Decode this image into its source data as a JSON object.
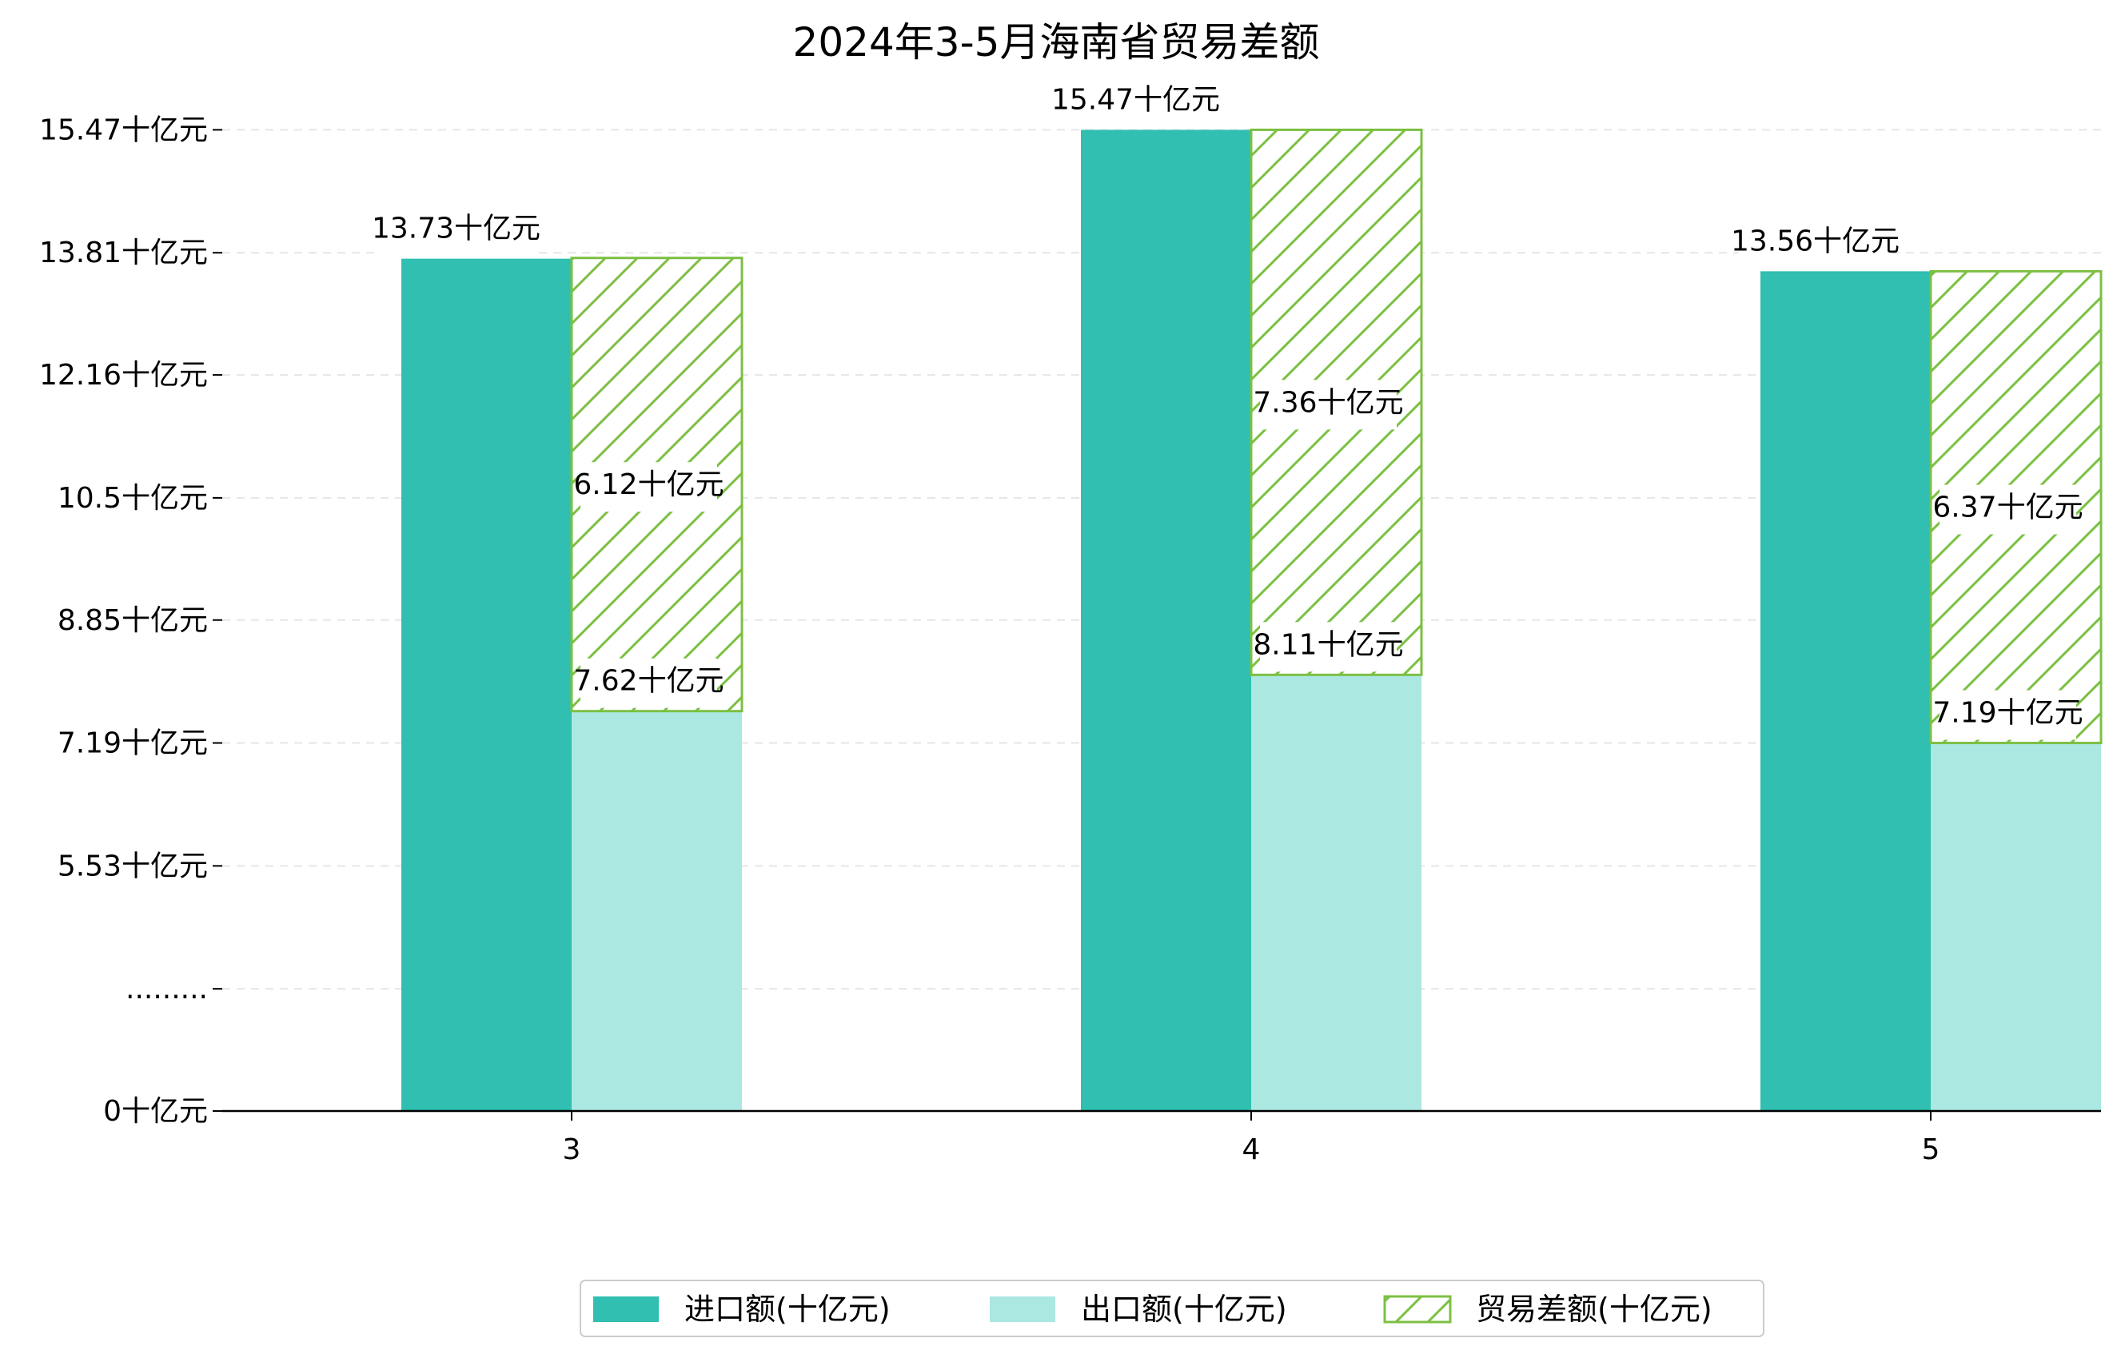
{
  "chart_data": {
    "type": "bar",
    "title": "2024年3-5月海南省贸易差额",
    "categories": [
      "3",
      "4",
      "5"
    ],
    "series": [
      {
        "name": "进口额(十亿元)",
        "values": [
          13.73,
          15.47,
          13.56
        ],
        "labels": [
          "13.73十亿元",
          "15.47十亿元",
          "13.56十亿元"
        ],
        "color": "#30bfb0"
      },
      {
        "name": "出口额(十亿元)",
        "values": [
          7.62,
          8.11,
          7.19
        ],
        "labels": [
          "7.62十亿元",
          "8.11十亿元",
          "7.19十亿元"
        ],
        "color": "#aae8e1"
      },
      {
        "name": "贸易差额(十亿元)",
        "values": [
          6.12,
          7.36,
          6.37
        ],
        "labels": [
          "6.12十亿元",
          "7.36十亿元",
          "6.37十亿元"
        ],
        "color": "#7cc043",
        "pattern": "hatch"
      }
    ],
    "y_ticks": [
      {
        "value": 0,
        "label": "0十亿元"
      },
      {
        "value": 1.65,
        "label": "........."
      },
      {
        "value": 3.31,
        "label": "5.53十亿元"
      },
      {
        "value": 4.97,
        "label": "7.19十亿元"
      },
      {
        "value": 6.63,
        "label": "8.85十亿元"
      },
      {
        "value": 8.28,
        "label": "10.5十亿元"
      },
      {
        "value": 9.94,
        "label": "12.16十亿元"
      },
      {
        "value": 11.59,
        "label": "13.81十亿元"
      },
      {
        "value": 13.25,
        "label": "15.47十亿元"
      }
    ],
    "axis_break": {
      "shown_value": 5.53,
      "axis_value": 3.31
    },
    "ylim": [
      0,
      13.6
    ],
    "grid": "horizontal-dashed",
    "legend": "bottom-center"
  }
}
